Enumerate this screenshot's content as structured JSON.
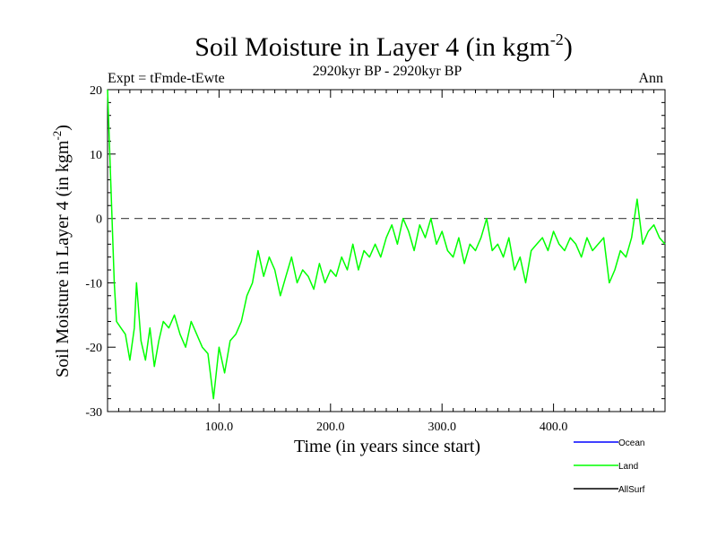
{
  "chart_data": {
    "type": "line",
    "title_main": "Soil Moisture in Layer 4 (in kgm",
    "title_sup": "-2",
    "title_close": ")",
    "expt_label": "Expt = tFmde-tEwte",
    "period_label": "2920kyr BP - 2920kyr BP",
    "season_label": "Ann",
    "xlabel": "Time (in years since start)",
    "ylabel_main": "Soil Moisture in Layer 4 (in kgm",
    "ylabel_sup": "-2",
    "ylabel_close": ")",
    "xlim": [
      0,
      500
    ],
    "ylim": [
      -30,
      20
    ],
    "x_ticks": [
      {
        "value": 100,
        "label": "100.0"
      },
      {
        "value": 200,
        "label": "200.0"
      },
      {
        "value": 300,
        "label": "300.0"
      },
      {
        "value": 400,
        "label": "400.0"
      }
    ],
    "y_ticks": [
      {
        "value": 20,
        "label": "20"
      },
      {
        "value": 10,
        "label": "10"
      },
      {
        "value": 0,
        "label": "0"
      },
      {
        "value": -10,
        "label": "-10"
      },
      {
        "value": -20,
        "label": "-20"
      },
      {
        "value": -30,
        "label": "-30"
      }
    ],
    "reference_line": 0,
    "legend": [
      {
        "name": "Ocean",
        "color": "#0000ff"
      },
      {
        "name": "Land",
        "color": "#00ff00"
      },
      {
        "name": "AllSurf",
        "color": "#000000"
      }
    ],
    "series": [
      {
        "name": "Land",
        "color": "#00ff00",
        "points": [
          [
            0,
            20
          ],
          [
            2,
            10
          ],
          [
            4,
            0
          ],
          [
            6,
            -10
          ],
          [
            8,
            -16
          ],
          [
            12,
            -17
          ],
          [
            16,
            -18
          ],
          [
            20,
            -22
          ],
          [
            24,
            -17
          ],
          [
            26,
            -10
          ],
          [
            30,
            -19
          ],
          [
            34,
            -22
          ],
          [
            38,
            -17
          ],
          [
            42,
            -23
          ],
          [
            46,
            -19
          ],
          [
            50,
            -16
          ],
          [
            55,
            -17
          ],
          [
            60,
            -15
          ],
          [
            65,
            -18
          ],
          [
            70,
            -20
          ],
          [
            75,
            -16
          ],
          [
            80,
            -18
          ],
          [
            85,
            -20
          ],
          [
            90,
            -21
          ],
          [
            95,
            -28
          ],
          [
            100,
            -20
          ],
          [
            105,
            -24
          ],
          [
            110,
            -19
          ],
          [
            115,
            -18
          ],
          [
            120,
            -16
          ],
          [
            125,
            -12
          ],
          [
            130,
            -10
          ],
          [
            135,
            -5
          ],
          [
            140,
            -9
          ],
          [
            145,
            -6
          ],
          [
            150,
            -8
          ],
          [
            155,
            -12
          ],
          [
            160,
            -9
          ],
          [
            165,
            -6
          ],
          [
            170,
            -10
          ],
          [
            175,
            -8
          ],
          [
            180,
            -9
          ],
          [
            185,
            -11
          ],
          [
            190,
            -7
          ],
          [
            195,
            -10
          ],
          [
            200,
            -8
          ],
          [
            205,
            -9
          ],
          [
            210,
            -6
          ],
          [
            215,
            -8
          ],
          [
            220,
            -4
          ],
          [
            225,
            -8
          ],
          [
            230,
            -5
          ],
          [
            235,
            -6
          ],
          [
            240,
            -4
          ],
          [
            245,
            -6
          ],
          [
            250,
            -3
          ],
          [
            255,
            -1
          ],
          [
            260,
            -4
          ],
          [
            265,
            0
          ],
          [
            270,
            -2
          ],
          [
            275,
            -5
          ],
          [
            280,
            -1
          ],
          [
            285,
            -3
          ],
          [
            290,
            0
          ],
          [
            295,
            -4
          ],
          [
            300,
            -2
          ],
          [
            305,
            -5
          ],
          [
            310,
            -6
          ],
          [
            315,
            -3
          ],
          [
            320,
            -7
          ],
          [
            325,
            -4
          ],
          [
            330,
            -5
          ],
          [
            335,
            -3
          ],
          [
            340,
            0
          ],
          [
            345,
            -5
          ],
          [
            350,
            -4
          ],
          [
            355,
            -6
          ],
          [
            360,
            -3
          ],
          [
            365,
            -8
          ],
          [
            370,
            -6
          ],
          [
            375,
            -10
          ],
          [
            380,
            -5
          ],
          [
            385,
            -4
          ],
          [
            390,
            -3
          ],
          [
            395,
            -5
          ],
          [
            400,
            -2
          ],
          [
            405,
            -4
          ],
          [
            410,
            -5
          ],
          [
            415,
            -3
          ],
          [
            420,
            -4
          ],
          [
            425,
            -6
          ],
          [
            430,
            -3
          ],
          [
            435,
            -5
          ],
          [
            440,
            -4
          ],
          [
            445,
            -3
          ],
          [
            450,
            -10
          ],
          [
            455,
            -8
          ],
          [
            460,
            -5
          ],
          [
            465,
            -6
          ],
          [
            470,
            -3
          ],
          [
            475,
            3
          ],
          [
            480,
            -4
          ],
          [
            485,
            -2
          ],
          [
            490,
            -1
          ],
          [
            495,
            -3
          ],
          [
            500,
            -4
          ]
        ]
      }
    ]
  }
}
